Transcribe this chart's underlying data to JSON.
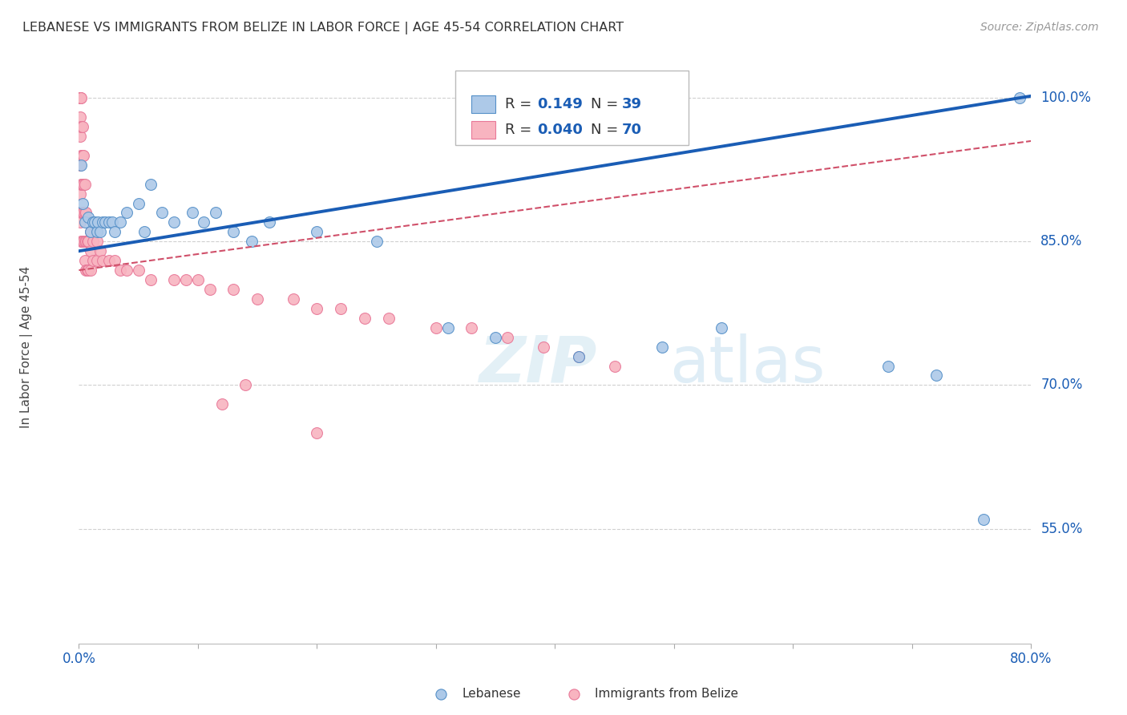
{
  "title": "LEBANESE VS IMMIGRANTS FROM BELIZE IN LABOR FORCE | AGE 45-54 CORRELATION CHART",
  "source": "Source: ZipAtlas.com",
  "ylabel": "In Labor Force | Age 45-54",
  "xlim": [
    0.0,
    0.8
  ],
  "ylim": [
    0.43,
    1.05
  ],
  "ytick_positions": [
    0.55,
    0.7,
    0.85,
    1.0
  ],
  "ytick_labels": [
    "55.0%",
    "70.0%",
    "85.0%",
    "100.0%"
  ],
  "watermark_zip": "ZIP",
  "watermark_atlas": "atlas",
  "blue_scatter_x": [
    0.002,
    0.003,
    0.005,
    0.008,
    0.01,
    0.012,
    0.013,
    0.015,
    0.016,
    0.018,
    0.02,
    0.022,
    0.025,
    0.028,
    0.03,
    0.035,
    0.04,
    0.05,
    0.055,
    0.06,
    0.07,
    0.08,
    0.095,
    0.105,
    0.115,
    0.13,
    0.145,
    0.16,
    0.2,
    0.25,
    0.31,
    0.35,
    0.42,
    0.49,
    0.54,
    0.68,
    0.72,
    0.76,
    0.79
  ],
  "blue_scatter_y": [
    0.93,
    0.89,
    0.87,
    0.875,
    0.86,
    0.87,
    0.87,
    0.86,
    0.87,
    0.86,
    0.87,
    0.87,
    0.87,
    0.87,
    0.86,
    0.87,
    0.88,
    0.89,
    0.86,
    0.91,
    0.88,
    0.87,
    0.88,
    0.87,
    0.88,
    0.86,
    0.85,
    0.87,
    0.86,
    0.85,
    0.76,
    0.75,
    0.73,
    0.74,
    0.76,
    0.72,
    0.71,
    0.56,
    1.0
  ],
  "pink_scatter_x": [
    0.001,
    0.001,
    0.001,
    0.001,
    0.001,
    0.001,
    0.001,
    0.001,
    0.002,
    0.002,
    0.002,
    0.002,
    0.002,
    0.002,
    0.003,
    0.003,
    0.003,
    0.003,
    0.003,
    0.004,
    0.004,
    0.004,
    0.004,
    0.005,
    0.005,
    0.005,
    0.005,
    0.006,
    0.006,
    0.006,
    0.007,
    0.007,
    0.008,
    0.008,
    0.01,
    0.01,
    0.01,
    0.012,
    0.012,
    0.015,
    0.015,
    0.018,
    0.02,
    0.025,
    0.03,
    0.035,
    0.04,
    0.05,
    0.06,
    0.08,
    0.09,
    0.1,
    0.11,
    0.13,
    0.15,
    0.18,
    0.2,
    0.22,
    0.24,
    0.26,
    0.3,
    0.33,
    0.36,
    0.39,
    0.42,
    0.45,
    0.2,
    0.12,
    0.14
  ],
  "pink_scatter_y": [
    1.0,
    1.0,
    1.0,
    0.98,
    0.96,
    0.93,
    0.9,
    0.87,
    1.0,
    0.97,
    0.94,
    0.91,
    0.88,
    0.85,
    0.97,
    0.94,
    0.91,
    0.88,
    0.85,
    0.94,
    0.91,
    0.88,
    0.85,
    0.91,
    0.88,
    0.85,
    0.83,
    0.88,
    0.85,
    0.82,
    0.85,
    0.82,
    0.85,
    0.82,
    0.86,
    0.84,
    0.82,
    0.85,
    0.83,
    0.85,
    0.83,
    0.84,
    0.83,
    0.83,
    0.83,
    0.82,
    0.82,
    0.82,
    0.81,
    0.81,
    0.81,
    0.81,
    0.8,
    0.8,
    0.79,
    0.79,
    0.78,
    0.78,
    0.77,
    0.77,
    0.76,
    0.76,
    0.75,
    0.74,
    0.73,
    0.72,
    0.65,
    0.68,
    0.7
  ],
  "blue_line_x": [
    0.0,
    0.8
  ],
  "blue_line_y": [
    0.84,
    1.002
  ],
  "pink_line_x": [
    0.0,
    0.8
  ],
  "pink_line_y": [
    0.82,
    0.955
  ],
  "scatter_size": 100,
  "blue_color": "#adc9e8",
  "pink_color": "#f8b4c0",
  "blue_edge": "#5590c8",
  "pink_edge": "#e87898",
  "trendline_blue": "#1a5db5",
  "trendline_pink": "#d0506a",
  "grid_color": "#d0d0d0",
  "legend_blue_fill": "#adc9e8",
  "legend_pink_fill": "#f8b4c0",
  "legend_r_color": "#1a5db5",
  "legend_n_color": "#1a5db5"
}
